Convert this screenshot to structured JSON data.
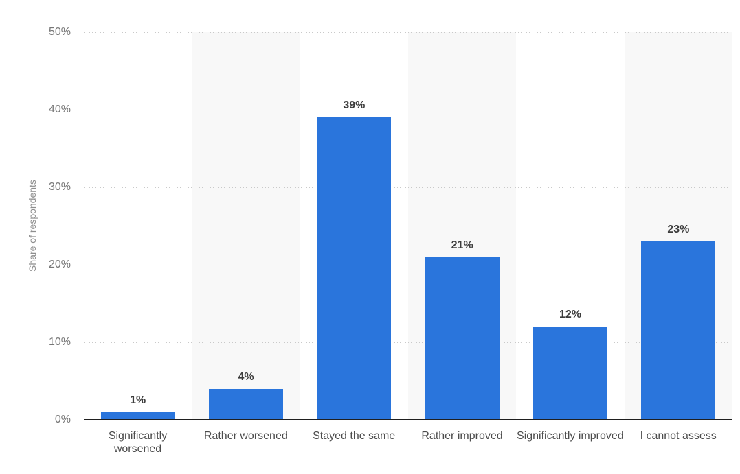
{
  "chart_data": {
    "type": "bar",
    "title": "",
    "xlabel": "",
    "ylabel": "Share of respondents",
    "categories": [
      "Significantly worsened",
      "Rather worsened",
      "Stayed the same",
      "Rather improved",
      "Significantly improved",
      "I cannot assess"
    ],
    "values": [
      1,
      4,
      39,
      21,
      12,
      23
    ],
    "value_labels": [
      "1%",
      "4%",
      "39%",
      "21%",
      "12%",
      "23%"
    ],
    "yticks": [
      "0%",
      "10%",
      "20%",
      "30%",
      "40%",
      "50%"
    ],
    "ylim": [
      0,
      50
    ],
    "grid": "horizontal-dotted",
    "legend": "none",
    "colors": {
      "bar": "#2a75dc",
      "column_stripe": "#f8f8f8",
      "gridline": "#c9c9c9",
      "axis_line": "#1f1f1f",
      "tick_text": "#767676",
      "category_text": "#4c4c4c",
      "value_text": "#3d3d3d",
      "ylabel_text": "#8e8e8e"
    },
    "striped_columns": [
      1,
      3,
      5
    ]
  }
}
